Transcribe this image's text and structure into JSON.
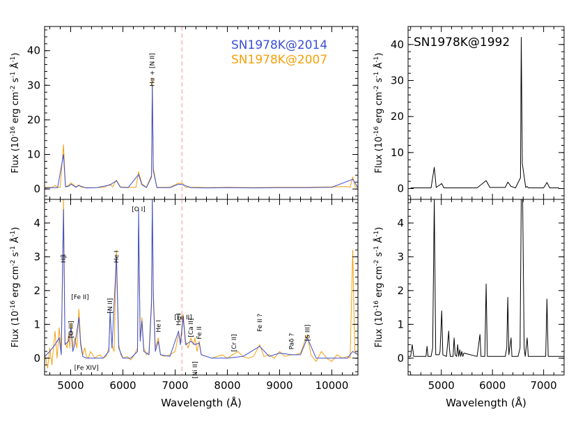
{
  "chart_data": [
    {
      "type": "line",
      "panel": "top-left",
      "ylabel": "Flux (10^-16 erg cm^-2 s^-1 Å^-1)",
      "xlim": [
        4500,
        10500
      ],
      "ylim": [
        -3,
        47
      ],
      "yticks": [
        0,
        10,
        20,
        30,
        40
      ],
      "vline": 7130,
      "legend": [
        {
          "label": "SN1978K@2014",
          "color": "#3a4fd6"
        },
        {
          "label": "SN1978K@2007",
          "color": "#f5a00a"
        }
      ],
      "annotations": [
        {
          "text": "Hα + [N II]",
          "x": 6563
        }
      ],
      "series": [
        {
          "name": "SN1978K@2007",
          "color": "#f5a00a",
          "x": [
            4500,
            4650,
            4700,
            4750,
            4800,
            4862,
            4900,
            4959,
            5007,
            5100,
            5158,
            5200,
            5300,
            5400,
            5500,
            5650,
            5755,
            5800,
            5876,
            5950,
            6100,
            6250,
            6300,
            6364,
            6450,
            6548,
            6563,
            6583,
            6650,
            6750,
            6900,
            7065,
            7155,
            7200,
            7300,
            7400,
            7600,
            8000,
            8500,
            9000,
            9500,
            10000,
            10300,
            10350,
            10400,
            10450,
            10500
          ],
          "y": [
            0.5,
            0.5,
            1.0,
            0.5,
            0.5,
            12.8,
            0.8,
            1.0,
            1.8,
            0.6,
            1.2,
            0.5,
            0.4,
            0.4,
            0.4,
            0.5,
            1.4,
            0.6,
            2.6,
            0.6,
            0.5,
            0.5,
            5.0,
            1.5,
            0.5,
            4.0,
            32.2,
            6.0,
            0.5,
            0.5,
            0.5,
            1.7,
            1.5,
            0.5,
            0.5,
            0.5,
            0.4,
            0.5,
            0.4,
            0.5,
            0.5,
            0.6,
            0.7,
            0.5,
            3.5,
            0.5,
            0.5
          ]
        },
        {
          "name": "SN1978K@2014",
          "color": "#3a4fd6",
          "x": [
            4500,
            4650,
            4750,
            4862,
            4900,
            4959,
            5007,
            5100,
            5158,
            5300,
            5500,
            5755,
            5876,
            5950,
            6100,
            6300,
            6364,
            6450,
            6548,
            6563,
            6583,
            6650,
            6750,
            6900,
            7065,
            7155,
            7300,
            7600,
            8000,
            8500,
            9000,
            9500,
            10000,
            10400,
            10500
          ],
          "y": [
            0.3,
            0.4,
            0.4,
            10.0,
            0.6,
            0.8,
            1.4,
            0.5,
            1.0,
            0.3,
            0.4,
            1.2,
            2.4,
            0.5,
            0.4,
            4.2,
            1.2,
            0.4,
            3.5,
            30.0,
            5.2,
            0.4,
            0.4,
            0.4,
            1.4,
            1.2,
            0.4,
            0.3,
            0.4,
            0.3,
            0.4,
            0.4,
            0.5,
            2.8,
            0.4
          ]
        }
      ]
    },
    {
      "type": "line",
      "panel": "bottom-left",
      "xlabel": "Wavelength (Å)",
      "ylabel": "Flux (10^-16 erg cm^-2 s^-1 Å^-1)",
      "xlim": [
        4500,
        10500
      ],
      "ylim": [
        -0.5,
        4.7
      ],
      "yticks": [
        0,
        1,
        2,
        3,
        4
      ],
      "xticks": [
        5000,
        6000,
        7000,
        8000,
        9000,
        10000
      ],
      "vline": 7130,
      "annotations": [
        {
          "text": "Hβ",
          "x": 4862,
          "y": 2.95
        },
        {
          "text": "[Fe II]",
          "x": 5180,
          "y": 1.75
        },
        {
          "text": "[O III]",
          "x": 5007,
          "y": 0.85
        },
        {
          "text": "[Fe XIV]",
          "x": 5303,
          "y": -0.35
        },
        {
          "text": "[N II]",
          "x": 5755,
          "y": 1.55
        },
        {
          "text": "He I",
          "x": 5876,
          "y": 3.0
        },
        {
          "text": "[O I]",
          "x": 6300,
          "y": 4.35
        },
        {
          "text": "He I",
          "x": 6678,
          "y": 0.95
        },
        {
          "text": "He I",
          "x": 7065,
          "y": 1.15
        },
        {
          "text": "[Fe II]",
          "x": 7155,
          "y": 1.15
        },
        {
          "text": "[Ca II]",
          "x": 7300,
          "y": 0.9
        },
        {
          "text": "Fe II",
          "x": 7462,
          "y": 0.75
        },
        {
          "text": "[Ni II]",
          "x": 7378,
          "y": -0.35
        },
        {
          "text": "[Cr II]",
          "x": 8125,
          "y": 0.45
        },
        {
          "text": "Fe II ?",
          "x": 8620,
          "y": 1.05
        },
        {
          "text": "Paδ ?",
          "x": 9230,
          "y": 0.5
        },
        {
          "text": "[S III]",
          "x": 9531,
          "y": 0.75
        }
      ],
      "series": [
        {
          "name": "SN1978K@2007",
          "color": "#f5a00a",
          "x": [
            4500,
            4560,
            4600,
            4640,
            4700,
            4740,
            4780,
            4820,
            4862,
            4890,
            4930,
            4959,
            4985,
            5007,
            5040,
            5080,
            5120,
            5158,
            5190,
            5230,
            5270,
            5303,
            5340,
            5380,
            5420,
            5460,
            5500,
            5560,
            5620,
            5680,
            5730,
            5755,
            5790,
            5830,
            5876,
            5920,
            5960,
            6000,
            6080,
            6150,
            6220,
            6280,
            6300,
            6330,
            6364,
            6400,
            6450,
            6500,
            6548,
            6563,
            6583,
            6620,
            6678,
            6720,
            6800,
            6900,
            7000,
            7065,
            7100,
            7155,
            7200,
            7250,
            7300,
            7350,
            7378,
            7420,
            7462,
            7500,
            7600,
            7700,
            7800,
            7900,
            8000,
            8100,
            8200,
            8300,
            8400,
            8500,
            8620,
            8700,
            8800,
            8900,
            9000,
            9100,
            9230,
            9300,
            9400,
            9531,
            9600,
            9700,
            9800,
            9900,
            10000,
            10100,
            10200,
            10300,
            10350,
            10400,
            10440,
            10500
          ],
          "y": [
            0.15,
            -0.3,
            0.3,
            -0.2,
            0.8,
            0.0,
            0.9,
            0.2,
            4.7,
            0.5,
            0.3,
            0.7,
            0.3,
            1.05,
            0.3,
            0.6,
            0.3,
            1.45,
            0.5,
            0.1,
            0.3,
            0.05,
            0.0,
            0.2,
            0.1,
            0.0,
            0.05,
            0.1,
            0.0,
            0.05,
            0.3,
            1.3,
            0.4,
            0.2,
            3.2,
            0.4,
            0.1,
            0.0,
            0.05,
            -0.05,
            0.1,
            0.3,
            4.0,
            0.6,
            1.2,
            0.3,
            0.1,
            0.2,
            1.8,
            4.7,
            2.0,
            0.3,
            0.6,
            0.1,
            0.05,
            0.1,
            0.2,
            0.7,
            0.5,
            1.3,
            0.5,
            0.3,
            0.6,
            0.4,
            0.6,
            0.2,
            0.5,
            0.1,
            0.05,
            0.0,
            0.05,
            0.1,
            0.0,
            0.1,
            0.2,
            0.05,
            0.0,
            0.05,
            0.4,
            0.05,
            0.1,
            0.0,
            0.2,
            0.05,
            0.1,
            0.1,
            0.15,
            0.7,
            0.1,
            -0.1,
            0.2,
            0.0,
            -0.1,
            0.1,
            0.0,
            0.05,
            0.0,
            3.2,
            0.2,
            0.1
          ]
        },
        {
          "name": "SN1978K@2014",
          "color": "#3a4fd6",
          "x": [
            4500,
            4600,
            4700,
            4780,
            4820,
            4862,
            4890,
            4959,
            5007,
            5040,
            5080,
            5158,
            5190,
            5230,
            5303,
            5400,
            5500,
            5620,
            5730,
            5755,
            5790,
            5876,
            5920,
            6000,
            6150,
            6280,
            6300,
            6330,
            6364,
            6400,
            6500,
            6548,
            6563,
            6583,
            6620,
            6678,
            6720,
            6900,
            7065,
            7100,
            7155,
            7200,
            7300,
            7378,
            7462,
            7500,
            7700,
            8000,
            8300,
            8620,
            8800,
            9000,
            9230,
            9400,
            9531,
            9700,
            10000,
            10300,
            10400,
            10500
          ],
          "y": [
            0.05,
            0.2,
            0.4,
            0.6,
            0.1,
            4.4,
            0.4,
            0.5,
            0.9,
            0.2,
            0.4,
            1.2,
            0.4,
            0.05,
            0.0,
            0.0,
            0.0,
            0.0,
            0.2,
            1.4,
            0.3,
            3.0,
            0.3,
            0.0,
            0.0,
            0.2,
            4.4,
            0.5,
            1.1,
            0.2,
            0.1,
            1.6,
            4.7,
            1.8,
            0.2,
            0.5,
            0.1,
            0.05,
            0.8,
            0.4,
            1.2,
            0.4,
            0.5,
            0.4,
            0.45,
            0.1,
            0.0,
            0.0,
            0.05,
            0.35,
            0.05,
            0.15,
            0.1,
            0.1,
            0.6,
            0.0,
            0.0,
            0.0,
            0.2,
            0.1
          ]
        }
      ]
    },
    {
      "type": "line",
      "panel": "top-right",
      "title": "SN1978K@1992",
      "ylabel": "Flux (10^-16 erg cm^-2 s^-1 Å^-1)",
      "xlim": [
        4350,
        7400
      ],
      "ylim": [
        -3,
        45
      ],
      "yticks": [
        0,
        10,
        20,
        30,
        40
      ],
      "series": [
        {
          "name": "SN1978K@1992",
          "color": "#000000",
          "x": [
            4400,
            4800,
            4862,
            4900,
            5007,
            5050,
            5700,
            5876,
            5950,
            6250,
            6300,
            6364,
            6450,
            6548,
            6563,
            6583,
            6650,
            6678,
            6700,
            7000,
            7065,
            7120,
            7300
          ],
          "y": [
            0.2,
            0.2,
            5.9,
            0.3,
            1.4,
            0.2,
            0.2,
            2.2,
            0.3,
            0.3,
            1.8,
            0.6,
            0.2,
            3.0,
            42.0,
            7.0,
            0.3,
            0.6,
            0.2,
            0.2,
            1.7,
            0.2,
            0.2
          ]
        }
      ]
    },
    {
      "type": "line",
      "panel": "bottom-right",
      "xlabel": "Wavelength (Å)",
      "ylabel": "Flux (10^-16 erg cm^-2 s^-1 Å^-1)",
      "xlim": [
        4350,
        7400
      ],
      "ylim": [
        -0.5,
        4.7
      ],
      "yticks": [
        0,
        1,
        2,
        3,
        4
      ],
      "xticks": [
        5000,
        6000,
        7000
      ],
      "series": [
        {
          "name": "SN1978K@1992",
          "color": "#000000",
          "x": [
            4350,
            4400,
            4430,
            4460,
            4700,
            4720,
            4740,
            4800,
            4830,
            4862,
            4890,
            4959,
            4975,
            5007,
            5030,
            5100,
            5145,
            5158,
            5175,
            5230,
            5250,
            5270,
            5300,
            5320,
            5340,
            5360,
            5380,
            5400,
            5420,
            5440,
            5700,
            5755,
            5775,
            5850,
            5876,
            5900,
            6250,
            6280,
            6300,
            6320,
            6364,
            6380,
            6500,
            6540,
            6563,
            6590,
            6620,
            6640,
            6678,
            6700,
            7040,
            7065,
            7090,
            7300,
            7400
          ],
          "y": [
            0.05,
            0.05,
            0.4,
            0.05,
            0.05,
            0.35,
            0.05,
            0.05,
            0.3,
            4.7,
            0.1,
            0.1,
            0.2,
            1.4,
            0.1,
            0.05,
            0.8,
            0.3,
            0.05,
            0.05,
            0.6,
            0.1,
            0.05,
            0.4,
            0.05,
            0.25,
            0.05,
            0.2,
            0.05,
            0.15,
            0.05,
            0.7,
            0.05,
            0.05,
            2.2,
            0.05,
            0.05,
            0.3,
            1.8,
            0.1,
            0.6,
            0.05,
            0.05,
            0.3,
            4.7,
            4.7,
            0.3,
            0.05,
            0.6,
            0.05,
            0.05,
            1.75,
            0.05,
            0.05,
            0.05
          ]
        }
      ]
    }
  ]
}
